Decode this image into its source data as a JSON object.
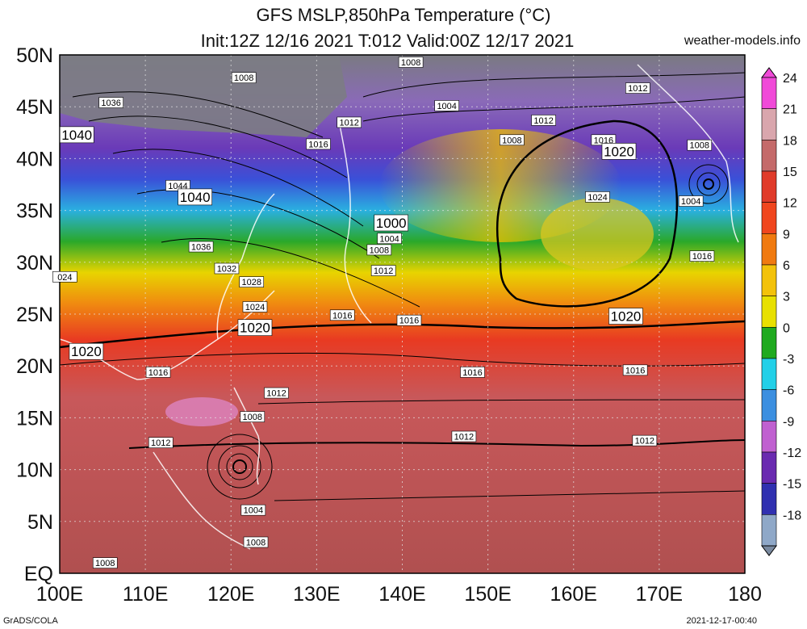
{
  "header": {
    "title_line1": "GFS MSLP,850hPa Temperature (°C)",
    "title_line2": "Init:12Z 12/16 2021 T:012 Valid:00Z 12/17 2021",
    "site": "weather-models.info"
  },
  "footer": {
    "left": "GrADS/COLA",
    "right": "2021-12-17-00:40"
  },
  "map": {
    "lat_labels": [
      "50N",
      "45N",
      "40N",
      "35N",
      "30N",
      "25N",
      "20N",
      "15N",
      "10N",
      "5N",
      "EQ"
    ],
    "lon_labels": [
      "100E",
      "110E",
      "120E",
      "130E",
      "140E",
      "150E",
      "160E",
      "170E",
      "180"
    ],
    "lat_values": [
      50,
      45,
      40,
      35,
      30,
      25,
      20,
      15,
      10,
      5,
      0
    ],
    "lon_values": [
      100,
      110,
      120,
      130,
      140,
      150,
      160,
      170,
      180
    ]
  },
  "colorbar": {
    "labels": [
      "24",
      "21",
      "18",
      "15",
      "12",
      "9",
      "6",
      "3",
      "0",
      "-3",
      "-6",
      "-9",
      "-12",
      "-15",
      "-18"
    ],
    "values": [
      24,
      21,
      18,
      15,
      12,
      9,
      6,
      3,
      0,
      -3,
      -6,
      -9,
      -12,
      -15,
      -18
    ],
    "colors": [
      "#f04ad8",
      "#d9a6ad",
      "#c46a6a",
      "#e03b2a",
      "#f0461e",
      "#f07a10",
      "#f3c20a",
      "#e8e000",
      "#1faa1f",
      "#22d0e8",
      "#3c8fe0",
      "#c060d0",
      "#6a2ab0",
      "#3030b0",
      "#8fa8c8"
    ]
  },
  "isobar_labels": [
    {
      "text": "1008",
      "lon": 141,
      "lat": 49.3
    },
    {
      "text": "1008",
      "lon": 121.5,
      "lat": 47.8
    },
    {
      "text": "1036",
      "lon": 106,
      "lat": 45.4
    },
    {
      "text": "1004",
      "lon": 145.2,
      "lat": 45.1
    },
    {
      "text": "1012",
      "lon": 167.5,
      "lat": 46.8
    },
    {
      "text": "1040",
      "lon": 102,
      "lat": 42.3
    },
    {
      "text": "1012",
      "lon": 133.8,
      "lat": 43.5
    },
    {
      "text": "1012",
      "lon": 156.5,
      "lat": 43.7
    },
    {
      "text": "1016",
      "lon": 130.2,
      "lat": 41.4
    },
    {
      "text": "1008",
      "lon": 152.8,
      "lat": 41.8
    },
    {
      "text": "1016",
      "lon": 163.5,
      "lat": 41.8
    },
    {
      "text": "1020",
      "lon": 165.3,
      "lat": 40.7
    },
    {
      "text": "1008",
      "lon": 174.7,
      "lat": 41.3
    },
    {
      "text": "1044",
      "lon": 113.8,
      "lat": 37.4
    },
    {
      "text": "1040",
      "lon": 115.8,
      "lat": 36.3
    },
    {
      "text": "1024",
      "lon": 162.8,
      "lat": 36.3
    },
    {
      "text": "1004",
      "lon": 173.7,
      "lat": 35.9
    },
    {
      "text": "1000",
      "lon": 138.7,
      "lat": 33.8
    },
    {
      "text": "1004",
      "lon": 138.5,
      "lat": 32.3
    },
    {
      "text": "1036",
      "lon": 116.5,
      "lat": 31.5
    },
    {
      "text": "1008",
      "lon": 137.3,
      "lat": 31.2
    },
    {
      "text": "1016",
      "lon": 175,
      "lat": 30.6
    },
    {
      "text": "1032",
      "lon": 119.5,
      "lat": 29.4
    },
    {
      "text": "1012",
      "lon": 137.8,
      "lat": 29.2
    },
    {
      "text": "024",
      "lon": 100.6,
      "lat": 28.6
    },
    {
      "text": "1028",
      "lon": 122.4,
      "lat": 28.1
    },
    {
      "text": "1024",
      "lon": 122.8,
      "lat": 25.7
    },
    {
      "text": "1016",
      "lon": 133,
      "lat": 24.9
    },
    {
      "text": "1016",
      "lon": 140.8,
      "lat": 24.4
    },
    {
      "text": "1020",
      "lon": 166.1,
      "lat": 24.8
    },
    {
      "text": "1020",
      "lon": 122.8,
      "lat": 23.7
    },
    {
      "text": "1020",
      "lon": 103.1,
      "lat": 21.4
    },
    {
      "text": "1016",
      "lon": 111.5,
      "lat": 19.4
    },
    {
      "text": "1016",
      "lon": 148.2,
      "lat": 19.4
    },
    {
      "text": "1016",
      "lon": 167.2,
      "lat": 19.6
    },
    {
      "text": "1012",
      "lon": 125.3,
      "lat": 17.4
    },
    {
      "text": "1008",
      "lon": 122.5,
      "lat": 15.1
    },
    {
      "text": "1012",
      "lon": 147.2,
      "lat": 13.2
    },
    {
      "text": "1012",
      "lon": 111.8,
      "lat": 12.6
    },
    {
      "text": "1012",
      "lon": 168.3,
      "lat": 12.8
    },
    {
      "text": "1004",
      "lon": 122.6,
      "lat": 6.1
    },
    {
      "text": "1008",
      "lon": 122.9,
      "lat": 3
    },
    {
      "text": "1008",
      "lon": 105.3,
      "lat": 1
    }
  ]
}
